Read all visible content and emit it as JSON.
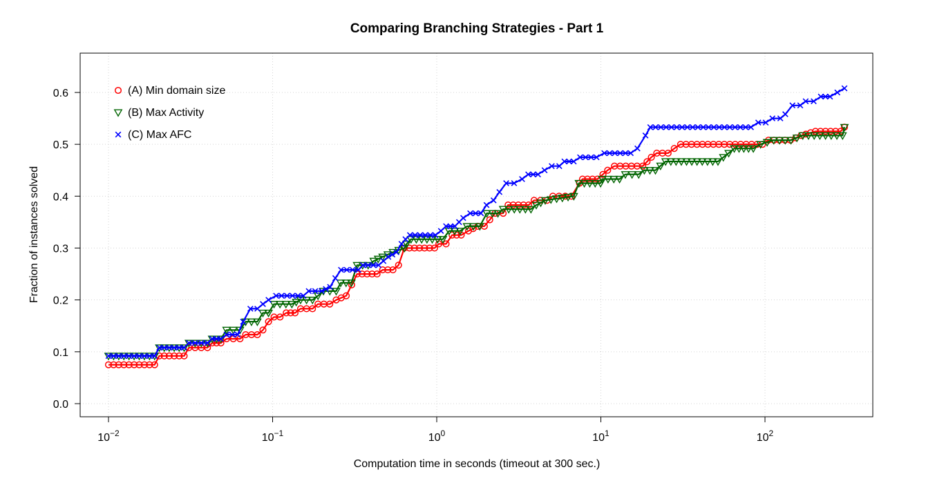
{
  "chart_data": {
    "type": "line",
    "title": "Comparing Branching Strategies - Part 1",
    "xlabel": "Computation time in seconds (timeout at 300 sec.)",
    "ylabel": "Fraction of instances solved",
    "x_scale": "log10",
    "xlim": [
      0.01,
      300
    ],
    "ylim": [
      0.0,
      0.6
    ],
    "x_ticks": [
      {
        "base": "10",
        "exp": "−2"
      },
      {
        "base": "10",
        "exp": "−1"
      },
      {
        "base": "10",
        "exp": "0"
      },
      {
        "base": "10",
        "exp": "1"
      },
      {
        "base": "10",
        "exp": "2"
      }
    ],
    "y_ticks": [
      "0.0",
      "0.1",
      "0.2",
      "0.3",
      "0.4",
      "0.5",
      "0.6"
    ],
    "grid": true,
    "legend_position": "top-left",
    "series": [
      {
        "name": "(A) Min domain size",
        "color": "#ff0000",
        "marker": "circle",
        "points": [
          [
            0.01,
            0.075
          ],
          [
            0.0191,
            0.075
          ],
          [
            0.0204,
            0.092
          ],
          [
            0.0289,
            0.092
          ],
          [
            0.0309,
            0.108
          ],
          [
            0.0401,
            0.108
          ],
          [
            0.0428,
            0.117
          ],
          [
            0.0484,
            0.117
          ],
          [
            0.0524,
            0.125
          ],
          [
            0.0633,
            0.125
          ],
          [
            0.0685,
            0.133
          ],
          [
            0.0807,
            0.133
          ],
          [
            0.0873,
            0.142
          ],
          [
            0.0944,
            0.158
          ],
          [
            0.102,
            0.167
          ],
          [
            0.111,
            0.167
          ],
          [
            0.121,
            0.175
          ],
          [
            0.137,
            0.175
          ],
          [
            0.148,
            0.183
          ],
          [
            0.175,
            0.183
          ],
          [
            0.189,
            0.192
          ],
          [
            0.223,
            0.192
          ],
          [
            0.244,
            0.2
          ],
          [
            0.281,
            0.208
          ],
          [
            0.327,
            0.25
          ],
          [
            0.433,
            0.25
          ],
          [
            0.468,
            0.258
          ],
          [
            0.541,
            0.258
          ],
          [
            0.585,
            0.267
          ],
          [
            0.635,
            0.3
          ],
          [
            0.97,
            0.3
          ],
          [
            1.03,
            0.308
          ],
          [
            1.14,
            0.308
          ],
          [
            1.24,
            0.325
          ],
          [
            1.41,
            0.325
          ],
          [
            1.56,
            0.333
          ],
          [
            1.78,
            0.342
          ],
          [
            1.95,
            0.342
          ],
          [
            2.27,
            0.367
          ],
          [
            2.54,
            0.367
          ],
          [
            2.72,
            0.383
          ],
          [
            3.63,
            0.383
          ],
          [
            3.92,
            0.392
          ],
          [
            4.7,
            0.392
          ],
          [
            5.1,
            0.4
          ],
          [
            6.62,
            0.4
          ],
          [
            7.41,
            0.425
          ],
          [
            7.73,
            0.433
          ],
          [
            9.53,
            0.433
          ],
          [
            10.3,
            0.442
          ],
          [
            11.0,
            0.45
          ],
          [
            12.1,
            0.458
          ],
          [
            18.0,
            0.458
          ],
          [
            20.3,
            0.475
          ],
          [
            21.9,
            0.483
          ],
          [
            25.7,
            0.483
          ],
          [
            28.0,
            0.492
          ],
          [
            30.6,
            0.5
          ],
          [
            96.6,
            0.5
          ],
          [
            105.0,
            0.508
          ],
          [
            143.0,
            0.508
          ],
          [
            166.0,
            0.517
          ],
          [
            203.0,
            0.525
          ],
          [
            289.0,
            0.525
          ],
          [
            305.0,
            0.533
          ]
        ]
      },
      {
        "name": "(B) Max Activity",
        "color": "#006400",
        "marker": "triangle-down",
        "points": [
          [
            0.01,
            0.092
          ],
          [
            0.0191,
            0.092
          ],
          [
            0.0204,
            0.108
          ],
          [
            0.0289,
            0.108
          ],
          [
            0.0309,
            0.117
          ],
          [
            0.0401,
            0.117
          ],
          [
            0.0428,
            0.125
          ],
          [
            0.0484,
            0.125
          ],
          [
            0.0524,
            0.142
          ],
          [
            0.0633,
            0.142
          ],
          [
            0.0685,
            0.158
          ],
          [
            0.0807,
            0.158
          ],
          [
            0.0873,
            0.175
          ],
          [
            0.0944,
            0.175
          ],
          [
            0.102,
            0.192
          ],
          [
            0.131,
            0.192
          ],
          [
            0.148,
            0.2
          ],
          [
            0.175,
            0.2
          ],
          [
            0.189,
            0.208
          ],
          [
            0.204,
            0.217
          ],
          [
            0.244,
            0.217
          ],
          [
            0.26,
            0.233
          ],
          [
            0.302,
            0.233
          ],
          [
            0.327,
            0.267
          ],
          [
            0.382,
            0.267
          ],
          [
            0.413,
            0.275
          ],
          [
            0.468,
            0.283
          ],
          [
            0.541,
            0.292
          ],
          [
            0.635,
            0.3
          ],
          [
            0.655,
            0.308
          ],
          [
            0.697,
            0.317
          ],
          [
            1.09,
            0.317
          ],
          [
            1.19,
            0.333
          ],
          [
            1.39,
            0.333
          ],
          [
            1.53,
            0.342
          ],
          [
            1.83,
            0.342
          ],
          [
            2.02,
            0.367
          ],
          [
            2.36,
            0.367
          ],
          [
            2.54,
            0.375
          ],
          [
            3.75,
            0.375
          ],
          [
            4.04,
            0.383
          ],
          [
            4.58,
            0.392
          ],
          [
            6.84,
            0.4
          ],
          [
            7.35,
            0.425
          ],
          [
            9.96,
            0.425
          ],
          [
            10.2,
            0.433
          ],
          [
            13.0,
            0.433
          ],
          [
            14.1,
            0.442
          ],
          [
            17.0,
            0.442
          ],
          [
            18.4,
            0.45
          ],
          [
            21.5,
            0.45
          ],
          [
            24.8,
            0.467
          ],
          [
            51.7,
            0.467
          ],
          [
            60.1,
            0.483
          ],
          [
            65.0,
            0.492
          ],
          [
            84.9,
            0.492
          ],
          [
            94.0,
            0.5
          ],
          [
            113.0,
            0.508
          ],
          [
            144.0,
            0.508
          ],
          [
            170.0,
            0.517
          ],
          [
            297.0,
            0.517
          ],
          [
            305.0,
            0.533
          ]
        ]
      },
      {
        "name": "(C) Max AFC",
        "color": "#0000ff",
        "marker": "cross",
        "points": [
          [
            0.01,
            0.092
          ],
          [
            0.0191,
            0.092
          ],
          [
            0.0204,
            0.108
          ],
          [
            0.0289,
            0.108
          ],
          [
            0.0309,
            0.117
          ],
          [
            0.0401,
            0.117
          ],
          [
            0.0428,
            0.125
          ],
          [
            0.0484,
            0.125
          ],
          [
            0.0524,
            0.133
          ],
          [
            0.0613,
            0.133
          ],
          [
            0.0661,
            0.158
          ],
          [
            0.0732,
            0.183
          ],
          [
            0.0807,
            0.183
          ],
          [
            0.0873,
            0.192
          ],
          [
            0.0944,
            0.2
          ],
          [
            0.105,
            0.208
          ],
          [
            0.154,
            0.208
          ],
          [
            0.166,
            0.217
          ],
          [
            0.199,
            0.217
          ],
          [
            0.224,
            0.225
          ],
          [
            0.241,
            0.242
          ],
          [
            0.261,
            0.258
          ],
          [
            0.333,
            0.258
          ],
          [
            0.355,
            0.267
          ],
          [
            0.442,
            0.267
          ],
          [
            0.507,
            0.283
          ],
          [
            0.568,
            0.292
          ],
          [
            0.61,
            0.308
          ],
          [
            0.645,
            0.317
          ],
          [
            0.687,
            0.325
          ],
          [
            0.981,
            0.325
          ],
          [
            1.06,
            0.333
          ],
          [
            1.14,
            0.342
          ],
          [
            1.29,
            0.342
          ],
          [
            1.45,
            0.358
          ],
          [
            1.6,
            0.367
          ],
          [
            1.86,
            0.367
          ],
          [
            2.01,
            0.383
          ],
          [
            2.22,
            0.392
          ],
          [
            2.41,
            0.408
          ],
          [
            2.65,
            0.425
          ],
          [
            2.96,
            0.425
          ],
          [
            3.31,
            0.433
          ],
          [
            3.61,
            0.442
          ],
          [
            4.14,
            0.442
          ],
          [
            4.54,
            0.45
          ],
          [
            5.02,
            0.458
          ],
          [
            5.58,
            0.458
          ],
          [
            6.0,
            0.467
          ],
          [
            6.83,
            0.467
          ],
          [
            7.47,
            0.475
          ],
          [
            9.41,
            0.475
          ],
          [
            10.5,
            0.483
          ],
          [
            15.2,
            0.483
          ],
          [
            16.7,
            0.492
          ],
          [
            18.7,
            0.517
          ],
          [
            20.0,
            0.533
          ],
          [
            82.1,
            0.533
          ],
          [
            91.0,
            0.542
          ],
          [
            101.0,
            0.542
          ],
          [
            111.0,
            0.55
          ],
          [
            124.0,
            0.55
          ],
          [
            133.0,
            0.558
          ],
          [
            147.0,
            0.575
          ],
          [
            164.0,
            0.575
          ],
          [
            177.0,
            0.583
          ],
          [
            198.0,
            0.583
          ],
          [
            219.0,
            0.592
          ],
          [
            249.0,
            0.592
          ],
          [
            276.0,
            0.6
          ],
          [
            305.0,
            0.608
          ]
        ]
      }
    ]
  }
}
